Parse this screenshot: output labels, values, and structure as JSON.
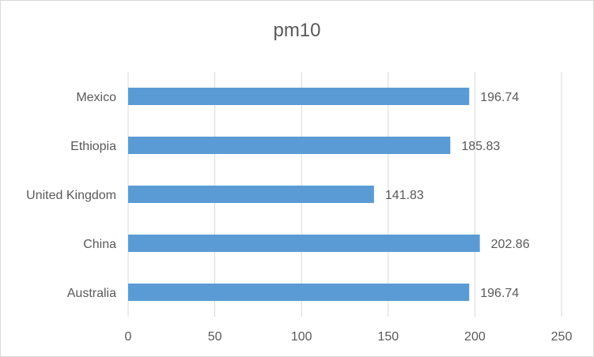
{
  "chart_data": {
    "type": "bar",
    "orientation": "horizontal",
    "title": "pm10",
    "xlabel": "",
    "ylabel": "",
    "categories": [
      "Mexico",
      "Ethiopia",
      "United Kingdom",
      "China",
      "Australia"
    ],
    "values": [
      196.74,
      185.83,
      141.83,
      202.86,
      196.74
    ],
    "xlim": [
      0,
      250
    ],
    "xticks": [
      0,
      50,
      100,
      150,
      200,
      250
    ],
    "grid": true,
    "legend": "none",
    "bar_color": "#5b9bd5"
  }
}
